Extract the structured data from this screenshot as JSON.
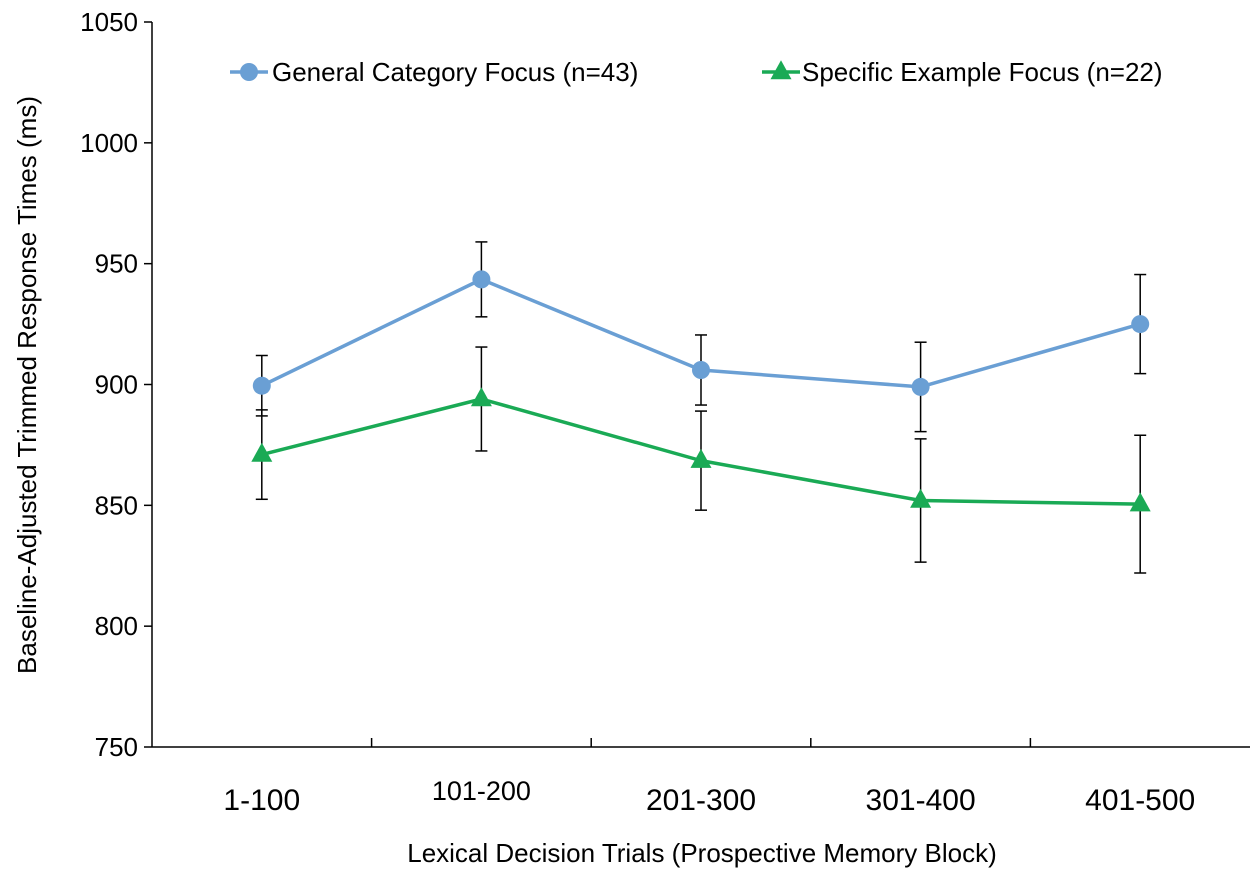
{
  "chart_data": {
    "type": "line",
    "xlabel": "Lexical Decision Trials (Prospective  Memory  Block)",
    "ylabel": "Baseline-Adjusted Trimmed Response Times (ms)",
    "ylim": [
      750,
      1050
    ],
    "yticks": [
      "750",
      "800",
      "850",
      "900",
      "950",
      "1000",
      "1050"
    ],
    "categories": [
      "1-100",
      "101-200",
      "201-300",
      "301-400",
      "401-500"
    ],
    "grid": false,
    "legend_position": "top",
    "series": [
      {
        "name": "General Category Focus (n=43)",
        "color": "#6a9fd4",
        "marker": "circle",
        "values": [
          899.5,
          943.5,
          906,
          899,
          925
        ],
        "error": [
          12.5,
          15.5,
          14.5,
          18.5,
          20.5
        ]
      },
      {
        "name": "Specific Example Focus (n=22)",
        "color": "#1aaa55",
        "marker": "triangle",
        "values": [
          871,
          894,
          868.5,
          852,
          850.5
        ],
        "error": [
          18.5,
          21.5,
          20.5,
          25.5,
          28.5
        ]
      }
    ]
  }
}
